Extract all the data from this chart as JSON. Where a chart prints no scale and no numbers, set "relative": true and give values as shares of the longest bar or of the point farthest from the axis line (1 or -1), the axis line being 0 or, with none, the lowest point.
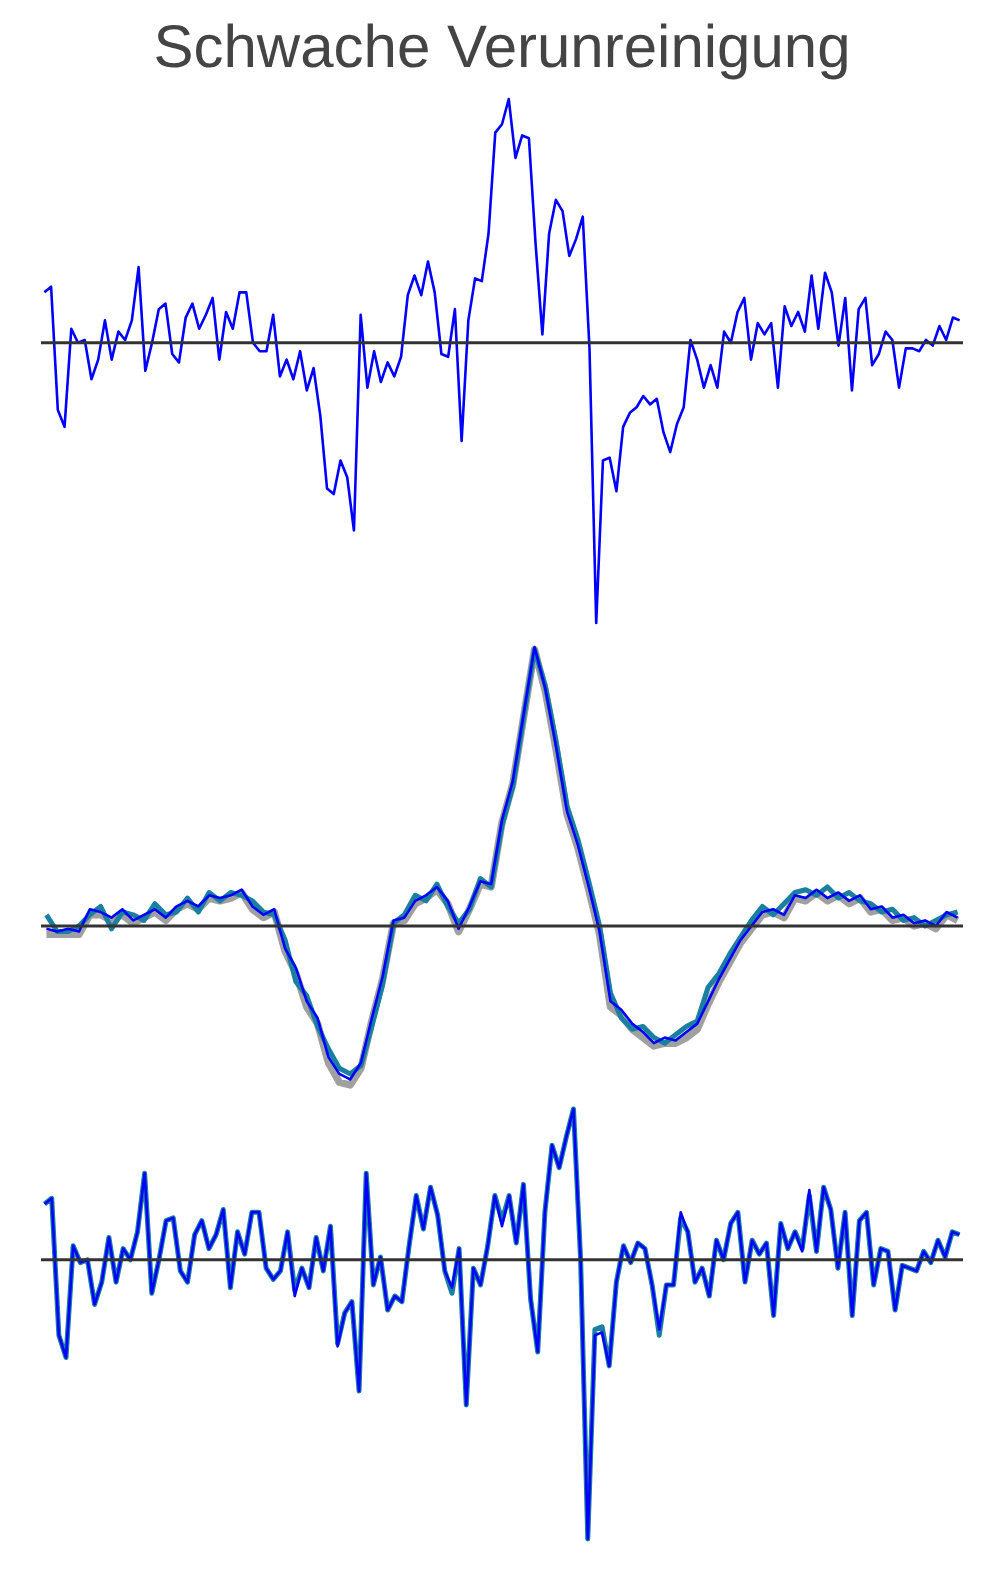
{
  "chart_data": [
    {
      "type": "line",
      "title": "Schwache Verunreinigung",
      "relative": true,
      "categories": [
        null,
        null,
        null,
        null,
        null,
        null,
        null,
        null,
        null,
        null,
        null,
        null,
        null,
        null,
        null,
        null,
        null,
        null,
        null,
        null,
        null,
        null,
        null,
        null,
        null,
        null,
        null,
        null,
        null,
        null,
        null,
        null,
        null,
        null,
        null,
        null,
        null,
        null,
        null,
        null,
        null,
        null,
        null,
        null,
        null,
        null,
        null,
        null,
        null,
        null,
        null,
        null,
        null,
        null,
        null,
        null,
        null,
        null,
        null,
        null,
        null,
        null,
        null,
        null,
        null,
        null,
        null,
        null,
        null,
        null,
        null,
        null,
        null,
        null,
        null,
        null,
        null,
        null,
        null,
        null,
        null,
        null,
        null,
        null,
        null,
        null,
        null,
        null,
        null,
        null,
        null,
        null,
        null,
        null,
        null,
        null,
        null,
        null,
        null,
        null,
        null,
        null,
        null,
        null,
        null,
        null,
        null,
        null,
        null,
        null,
        null,
        null,
        null,
        null,
        null,
        null,
        null,
        null,
        null,
        null,
        null,
        null,
        null,
        null,
        null,
        null,
        null,
        null,
        null,
        null,
        null,
        null,
        null,
        null,
        null,
        null,
        null
      ],
      "series": [
        {
          "color": "#0000ff",
          "values": [
            0.18,
            0.2,
            -0.24,
            -0.3,
            0.05,
            0.0,
            0.01,
            -0.13,
            -0.06,
            0.08,
            -0.06,
            0.04,
            0.01,
            0.08,
            0.27,
            -0.1,
            0.0,
            0.12,
            0.14,
            -0.04,
            -0.07,
            0.09,
            0.14,
            0.05,
            0.1,
            0.16,
            -0.06,
            0.11,
            0.05,
            0.18,
            0.18,
            0.0,
            -0.03,
            -0.03,
            0.1,
            -0.12,
            -0.06,
            -0.13,
            -0.03,
            -0.17,
            -0.09,
            -0.26,
            -0.52,
            -0.54,
            -0.42,
            -0.48,
            -0.67,
            0.1,
            -0.16,
            -0.03,
            -0.14,
            -0.07,
            -0.12,
            -0.05,
            0.17,
            0.24,
            0.17,
            0.29,
            0.18,
            -0.04,
            -0.05,
            0.12,
            -0.35,
            0.08,
            0.23,
            0.22,
            0.39,
            0.75,
            0.78,
            0.87,
            0.66,
            0.74,
            0.73,
            0.35,
            0.03,
            0.39,
            0.51,
            0.47,
            0.31,
            0.37,
            0.45,
            -0.02,
            -1.0,
            -0.42,
            -0.41,
            -0.53,
            -0.3,
            -0.25,
            -0.23,
            -0.19,
            -0.22,
            -0.2,
            -0.32,
            -0.39,
            -0.29,
            -0.23,
            0.01,
            -0.06,
            -0.16,
            -0.08,
            -0.16,
            0.04,
            0.0,
            0.11,
            0.16,
            -0.06,
            0.07,
            0.03,
            0.07,
            -0.16,
            0.13,
            0.06,
            0.11,
            0.04,
            0.24,
            0.05,
            0.25,
            0.18,
            -0.01,
            0.16,
            -0.17,
            0.12,
            0.16,
            -0.08,
            -0.04,
            0.04,
            0.01,
            -0.16,
            -0.02,
            -0.02,
            -0.03,
            0.01,
            -0.01,
            0.06,
            0.01,
            0.09,
            0.08
          ]
        }
      ]
    },
    {
      "type": "line",
      "relative": true,
      "categories": [
        null,
        null,
        null,
        null,
        null,
        null,
        null,
        null,
        null,
        null,
        null,
        null,
        null,
        null,
        null,
        null,
        null,
        null,
        null,
        null,
        null,
        null,
        null,
        null,
        null,
        null,
        null,
        null,
        null,
        null,
        null,
        null,
        null,
        null,
        null,
        null,
        null,
        null,
        null,
        null,
        null,
        null,
        null,
        null,
        null,
        null,
        null,
        null,
        null,
        null,
        null,
        null,
        null,
        null,
        null,
        null,
        null,
        null,
        null,
        null,
        null,
        null,
        null,
        null,
        null,
        null,
        null,
        null,
        null,
        null,
        null,
        null,
        null,
        null,
        null,
        null,
        null,
        null,
        null,
        null,
        null,
        null,
        null,
        null,
        null
      ],
      "series": [
        {
          "color": "#a0a0a0",
          "values": [
            -0.03,
            -0.03,
            -0.03,
            -0.03,
            0.04,
            0.04,
            0.02,
            0.04,
            0.01,
            0.03,
            0.05,
            0.02,
            0.06,
            0.08,
            0.06,
            0.1,
            0.09,
            0.1,
            0.12,
            0.06,
            0.03,
            0.05,
            -0.09,
            -0.17,
            -0.29,
            -0.35,
            -0.49,
            -0.56,
            -0.57,
            -0.51,
            -0.34,
            -0.19,
            0.01,
            0.02,
            0.08,
            0.1,
            0.13,
            0.08,
            -0.02,
            0.06,
            0.15,
            0.14,
            0.37,
            0.51,
            0.75,
            0.99,
            0.84,
            0.63,
            0.4,
            0.28,
            0.13,
            -0.03,
            -0.29,
            -0.32,
            -0.37,
            -0.4,
            -0.43,
            -0.42,
            -0.42,
            -0.4,
            -0.37,
            -0.28,
            -0.2,
            -0.13,
            -0.06,
            -0.01,
            0.04,
            0.05,
            0.03,
            0.1,
            0.09,
            0.12,
            0.09,
            0.11,
            0.08,
            0.1,
            0.05,
            0.06,
            0.02,
            0.03,
            0.0,
            0.01,
            -0.01,
            0.04,
            0.02
          ]
        },
        {
          "color": "#1a7fa0",
          "values": [
            0.04,
            -0.02,
            -0.02,
            0.0,
            0.04,
            0.07,
            -0.01,
            0.05,
            0.04,
            0.02,
            0.08,
            0.04,
            0.05,
            0.1,
            0.05,
            0.12,
            0.09,
            0.12,
            0.11,
            0.09,
            0.05,
            0.04,
            -0.05,
            -0.2,
            -0.25,
            -0.36,
            -0.44,
            -0.51,
            -0.53,
            -0.5,
            -0.36,
            -0.21,
            0.01,
            0.04,
            0.11,
            0.09,
            0.15,
            0.07,
            0.01,
            0.06,
            0.17,
            0.14,
            0.36,
            0.5,
            0.75,
            0.99,
            0.86,
            0.66,
            0.43,
            0.31,
            0.16,
            0.0,
            -0.24,
            -0.33,
            -0.37,
            -0.36,
            -0.4,
            -0.42,
            -0.39,
            -0.36,
            -0.34,
            -0.22,
            -0.17,
            -0.1,
            -0.04,
            0.02,
            0.07,
            0.04,
            0.08,
            0.12,
            0.13,
            0.11,
            0.14,
            0.1,
            0.12,
            0.09,
            0.08,
            0.05,
            0.06,
            0.02,
            0.03,
            0.0,
            0.02,
            0.04,
            0.05
          ]
        },
        {
          "color": "#0000ff",
          "values": [
            -0.01,
            -0.02,
            -0.01,
            -0.02,
            0.06,
            0.05,
            0.03,
            0.06,
            0.02,
            0.04,
            0.06,
            0.03,
            0.07,
            0.09,
            0.07,
            0.11,
            0.1,
            0.11,
            0.13,
            0.07,
            0.04,
            0.06,
            -0.08,
            -0.15,
            -0.27,
            -0.33,
            -0.47,
            -0.53,
            -0.55,
            -0.49,
            -0.33,
            -0.18,
            0.02,
            0.03,
            0.09,
            0.11,
            0.14,
            0.09,
            -0.01,
            0.07,
            0.16,
            0.15,
            0.38,
            0.52,
            0.76,
            1.0,
            0.85,
            0.64,
            0.41,
            0.29,
            0.14,
            -0.02,
            -0.27,
            -0.3,
            -0.35,
            -0.38,
            -0.42,
            -0.4,
            -0.41,
            -0.38,
            -0.35,
            -0.27,
            -0.19,
            -0.12,
            -0.05,
            0.0,
            0.05,
            0.06,
            0.04,
            0.11,
            0.1,
            0.13,
            0.1,
            0.12,
            0.09,
            0.11,
            0.06,
            0.07,
            0.03,
            0.04,
            0.01,
            0.02,
            0.0,
            0.05,
            0.03
          ]
        }
      ]
    },
    {
      "type": "line",
      "relative": true,
      "categories": [
        null,
        null,
        null,
        null,
        null,
        null,
        null,
        null,
        null,
        null,
        null,
        null,
        null,
        null,
        null,
        null,
        null,
        null,
        null,
        null,
        null,
        null,
        null,
        null,
        null,
        null,
        null,
        null,
        null,
        null,
        null,
        null,
        null,
        null,
        null,
        null,
        null,
        null,
        null,
        null,
        null,
        null,
        null,
        null,
        null,
        null,
        null,
        null,
        null,
        null,
        null,
        null,
        null,
        null,
        null,
        null,
        null,
        null,
        null,
        null,
        null,
        null,
        null,
        null,
        null,
        null,
        null,
        null,
        null,
        null,
        null,
        null,
        null,
        null,
        null,
        null,
        null,
        null,
        null,
        null,
        null,
        null,
        null,
        null,
        null,
        null,
        null,
        null,
        null,
        null,
        null,
        null,
        null,
        null,
        null,
        null,
        null,
        null,
        null,
        null,
        null,
        null,
        null,
        null,
        null,
        null,
        null,
        null,
        null,
        null,
        null,
        null,
        null,
        null,
        null,
        null,
        null,
        null,
        null,
        null,
        null,
        null,
        null,
        null,
        null,
        null,
        null,
        null,
        null
      ],
      "series": [
        {
          "color": "#1a7fa0",
          "values": [
            0.2,
            0.22,
            -0.27,
            -0.35,
            0.05,
            -0.01,
            0.0,
            -0.16,
            -0.08,
            0.08,
            -0.08,
            0.04,
            0.0,
            0.1,
            0.31,
            -0.12,
            0.0,
            0.14,
            0.15,
            -0.04,
            -0.08,
            0.09,
            0.14,
            0.04,
            0.09,
            0.18,
            -0.1,
            0.1,
            0.02,
            0.17,
            0.17,
            -0.03,
            -0.07,
            -0.04,
            0.1,
            -0.11,
            -0.03,
            -0.1,
            0.08,
            -0.04,
            0.12,
            -0.3,
            -0.19,
            -0.15,
            -0.47,
            0.31,
            -0.09,
            0.01,
            -0.18,
            -0.13,
            -0.15,
            0.05,
            0.23,
            0.11,
            0.26,
            0.16,
            -0.04,
            -0.12,
            0.04,
            -0.52,
            -0.03,
            -0.09,
            0.05,
            0.23,
            0.14,
            0.23,
            0.06,
            0.27,
            -0.14,
            -0.33,
            0.17,
            0.41,
            0.33,
            0.44,
            0.54,
            0.0,
            -1.0,
            -0.25,
            -0.24,
            -0.38,
            -0.08,
            0.05,
            -0.01,
            0.06,
            0.04,
            -0.09,
            -0.27,
            -0.09,
            -0.09,
            0.15,
            0.1,
            -0.08,
            -0.03,
            -0.13,
            0.07,
            0.0,
            0.13,
            0.17,
            -0.08,
            0.07,
            0.02,
            0.06,
            -0.2,
            0.13,
            0.04,
            0.1,
            0.04,
            0.23,
            0.03,
            0.26,
            0.18,
            -0.03,
            0.17,
            -0.2,
            0.14,
            0.17,
            -0.09,
            0.04,
            0.03,
            -0.18,
            -0.02,
            -0.03,
            -0.04,
            0.03,
            -0.01,
            0.07,
            0.01,
            0.1,
            0.09
          ]
        },
        {
          "color": "#0000ff",
          "values": [
            0.2,
            0.22,
            -0.27,
            -0.35,
            0.05,
            -0.01,
            0.0,
            -0.16,
            -0.08,
            0.08,
            -0.08,
            0.04,
            0.0,
            0.1,
            0.31,
            -0.12,
            0.0,
            0.14,
            0.15,
            -0.04,
            -0.08,
            0.09,
            0.14,
            0.04,
            0.09,
            0.18,
            -0.1,
            0.1,
            0.02,
            0.17,
            0.17,
            -0.03,
            -0.07,
            -0.04,
            0.1,
            -0.13,
            -0.03,
            -0.1,
            0.08,
            -0.04,
            0.12,
            -0.31,
            -0.19,
            -0.15,
            -0.47,
            0.31,
            -0.09,
            0.01,
            -0.18,
            -0.13,
            -0.15,
            0.05,
            0.23,
            0.11,
            0.26,
            0.16,
            -0.04,
            -0.1,
            0.04,
            -0.52,
            -0.03,
            -0.09,
            0.05,
            0.23,
            0.12,
            0.23,
            0.06,
            0.27,
            -0.14,
            -0.33,
            0.17,
            0.41,
            0.33,
            0.44,
            0.54,
            0.0,
            -1.0,
            -0.27,
            -0.26,
            -0.38,
            -0.08,
            0.05,
            -0.01,
            0.06,
            0.04,
            -0.09,
            -0.25,
            -0.09,
            -0.09,
            0.17,
            0.1,
            -0.08,
            -0.03,
            -0.13,
            0.07,
            0.0,
            0.13,
            0.17,
            -0.08,
            0.07,
            0.02,
            0.06,
            -0.2,
            0.13,
            0.04,
            0.1,
            0.03,
            0.25,
            0.03,
            0.26,
            0.18,
            -0.03,
            0.17,
            -0.2,
            0.14,
            0.17,
            -0.09,
            0.04,
            0.03,
            -0.18,
            -0.02,
            -0.03,
            -0.04,
            0.03,
            -0.01,
            0.07,
            0.01,
            0.1,
            0.09
          ]
        }
      ]
    }
  ]
}
